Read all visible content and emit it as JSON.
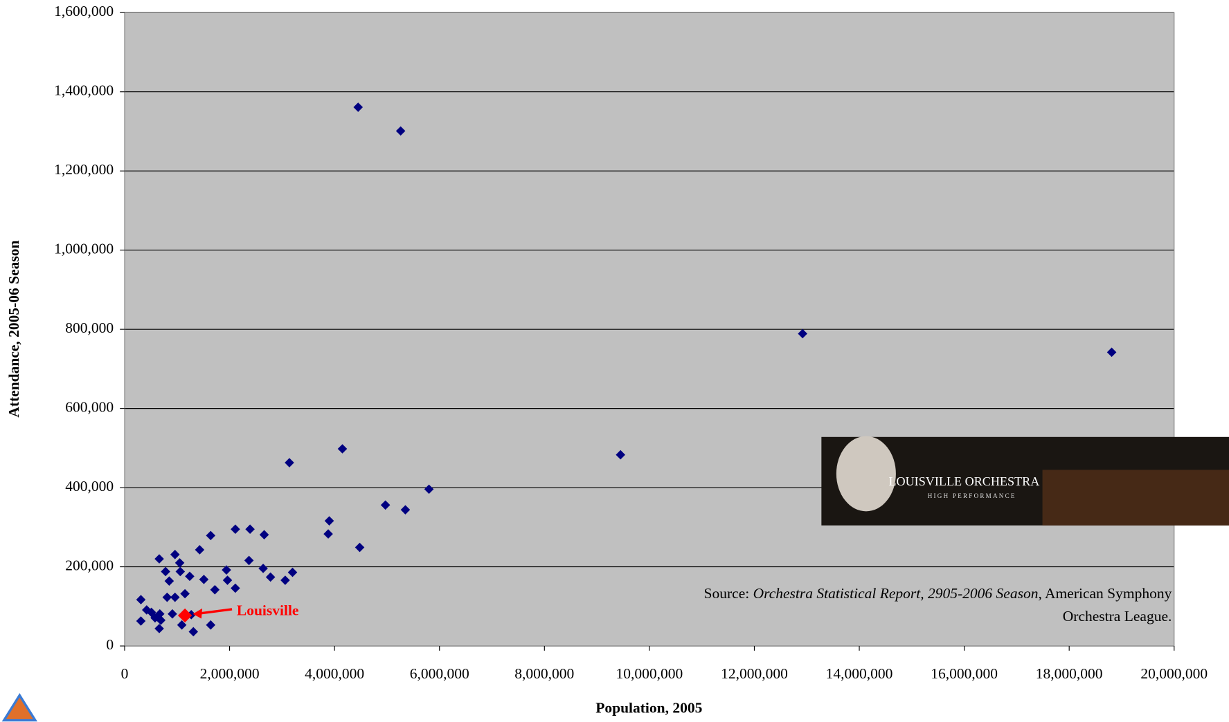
{
  "chart_data": {
    "type": "scatter",
    "xlabel": "Population, 2005",
    "ylabel": "Attendance, 2005-06 Season",
    "xlim": [
      0,
      20000000
    ],
    "ylim": [
      0,
      1600000
    ],
    "xticks": [
      0,
      {
        "value": 2000000,
        "label": "2,000,000"
      },
      {
        "value": 4000000,
        "label": "4,000,000"
      },
      {
        "value": 6000000,
        "label": "6,000,000"
      },
      {
        "value": 8000000,
        "label": "8,000,000"
      },
      {
        "value": 10000000,
        "label": "10,000,000"
      },
      {
        "value": 12000000,
        "label": "12,000,000"
      },
      {
        "value": 14000000,
        "label": "14,000,000"
      },
      {
        "value": 16000000,
        "label": "16,000,000"
      },
      {
        "value": 18000000,
        "label": "18,000,000"
      },
      {
        "value": 20000000,
        "label": "20,000,000"
      }
    ],
    "yticks": [
      0,
      {
        "value": 200000,
        "label": "200,000"
      },
      {
        "value": 400000,
        "label": "400,000"
      },
      {
        "value": 600000,
        "label": "600,000"
      },
      {
        "value": 800000,
        "label": "800,000"
      },
      {
        "value": 1000000,
        "label": "1,000,000"
      },
      {
        "value": 1200000,
        "label": "1,200,000"
      },
      {
        "value": 1400000,
        "label": "1,400,000"
      },
      {
        "value": 1600000,
        "label": "1,600,000"
      }
    ],
    "grid": true,
    "series": [
      {
        "color": "#000080",
        "x": [
          4450000,
          5260000,
          12920000,
          18810000,
          9450000,
          4150000,
          3140000,
          5800000,
          4970000,
          5350000,
          3900000,
          3880000,
          4480000,
          2110000,
          2390000,
          2660000,
          1640000,
          1430000,
          2370000,
          2640000,
          2780000,
          3060000,
          3200000,
          1940000,
          1960000,
          2110000,
          1720000,
          1510000,
          1240000,
          1150000,
          960000,
          1050000,
          1060000,
          660000,
          780000,
          850000,
          810000,
          960000,
          310000,
          420000,
          510000,
          580000,
          670000,
          910000,
          310000,
          690000,
          660000,
          1090000,
          1270000,
          1310000,
          1640000
        ],
        "values": [
          1361000,
          1301000,
          789000,
          742000,
          483000,
          498000,
          463000,
          396000,
          356000,
          344000,
          316000,
          283000,
          249000,
          295000,
          295000,
          281000,
          279000,
          243000,
          216000,
          196000,
          174000,
          166000,
          186000,
          192000,
          166000,
          146000,
          142000,
          168000,
          176000,
          132000,
          231000,
          210000,
          188000,
          220000,
          188000,
          164000,
          123000,
          123000,
          117000,
          91000,
          85000,
          71000,
          81000,
          81000,
          63000,
          65000,
          44000,
          53000,
          79000,
          36000,
          53000
        ]
      },
      {
        "name": "Louisville",
        "color": "#ff0000",
        "x": [
          1150000
        ],
        "values": [
          77000
        ]
      }
    ],
    "source": {
      "prefix": "Source: ",
      "title": "Orchestra Statistical Report, 2905-2006 Season",
      "suffix": ", American Symphony",
      "suffix2": "Orchestra League."
    },
    "banner": {
      "name": "LOUISVILLE ORCHESTRA",
      "tagline": "HIGH PERFORMANCE"
    }
  }
}
